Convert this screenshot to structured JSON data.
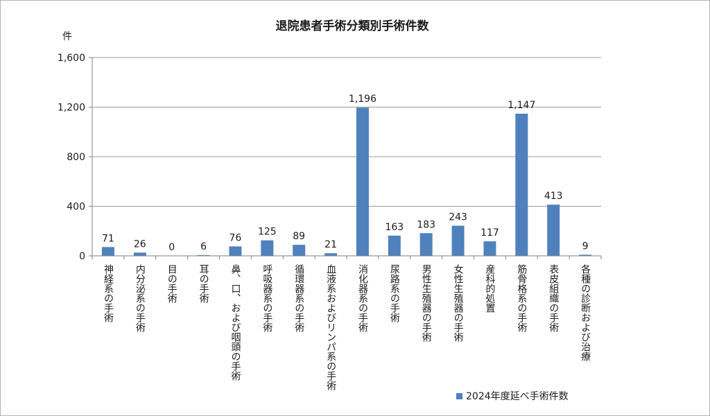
{
  "chart_data": {
    "type": "bar",
    "title": "退院患者手術分類別手術件数",
    "ylabel": "件",
    "ylim": [
      0,
      1600
    ],
    "yticks": [
      0,
      400,
      800,
      1200,
      1600
    ],
    "ytick_labels": [
      "0",
      "400",
      "800",
      "1,200",
      "1,600"
    ],
    "grid": true,
    "legend_position": "bottom-right",
    "categories": [
      "神経系の手術",
      "内分泌系の手術",
      "目の手術",
      "耳の手術",
      "鼻、口、および咽頭の手術",
      "呼吸器系の手術",
      "循環器系の手術",
      "血液系およびリンパ系の手術",
      "消化器系の手術",
      "尿路系の手術",
      "男性生殖器の手術",
      "女性生殖器の手術",
      "産科的処置",
      "筋骨格系の手術",
      "表皮組織の手術",
      "各種の診断および治療"
    ],
    "series": [
      {
        "name": "2024年度延べ手術件数",
        "color": "#4f81bd",
        "values": [
          71,
          26,
          0,
          6,
          76,
          125,
          89,
          21,
          1196,
          163,
          183,
          243,
          117,
          1147,
          413,
          9
        ],
        "value_labels": [
          "71",
          "26",
          "0",
          "6",
          "76",
          "125",
          "89",
          "21",
          "1,196",
          "163",
          "183",
          "243",
          "117",
          "1,147",
          "413",
          "9"
        ]
      }
    ]
  }
}
